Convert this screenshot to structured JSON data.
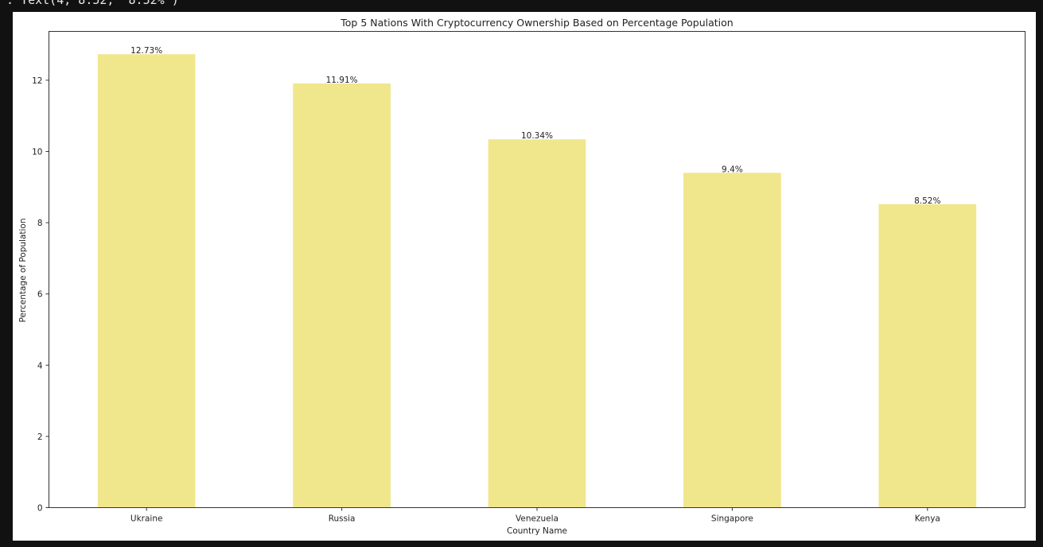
{
  "output_text": ": Text(4, 8.52, '8.52%')",
  "chart_data": {
    "type": "bar",
    "title": "Top 5 Nations With Cryptocurrency Ownership Based on Percentage Population",
    "xlabel": "Country Name",
    "ylabel": "Percentage of Population",
    "categories": [
      "Ukraine",
      "Russia",
      "Venezuela",
      "Singapore",
      "Kenya"
    ],
    "values": [
      12.73,
      11.91,
      10.34,
      9.4,
      8.52
    ],
    "data_labels": [
      "12.73%",
      "11.91%",
      "10.34%",
      "9.4%",
      "8.52%"
    ],
    "yticks": [
      0,
      2,
      4,
      6,
      8,
      10,
      12
    ],
    "ylim": [
      0,
      13.37
    ],
    "grid": false,
    "bar_color": "#F0E68C"
  }
}
